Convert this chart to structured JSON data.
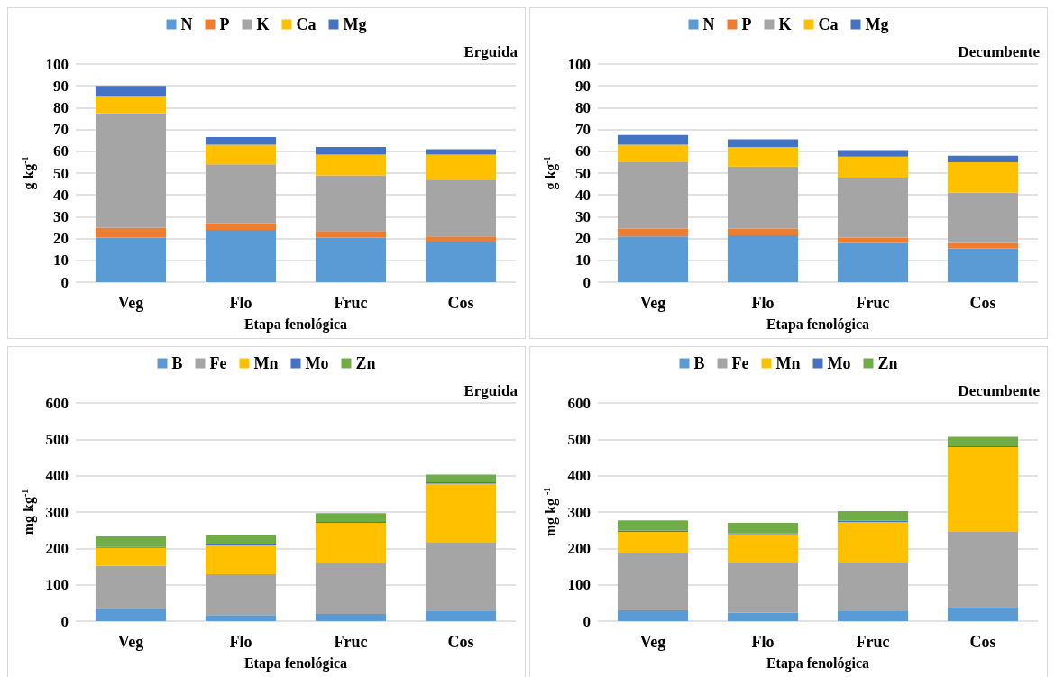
{
  "chart_data": [
    {
      "type": "bar",
      "stacked": true,
      "xlabel": "Etapa fenológica",
      "ylabel": "g kg$^{-1}$",
      "annotations": [
        "Erguida"
      ],
      "categories": [
        "Veg",
        "Flo",
        "Fruc",
        "Cos"
      ],
      "ylim": [
        0,
        100
      ],
      "yticks": [
        0,
        10,
        20,
        30,
        40,
        50,
        60,
        70,
        80,
        90,
        100
      ],
      "grid": "y",
      "legend": "top",
      "series": [
        {
          "name": "N",
          "color": "#5b9bd5",
          "values": [
            20.5,
            24,
            20.5,
            18.5
          ]
        },
        {
          "name": "P",
          "color": "#ed7d31",
          "values": [
            4.5,
            3,
            3,
            2.5
          ]
        },
        {
          "name": "K",
          "color": "#a5a5a5",
          "values": [
            52.5,
            27,
            25.5,
            26
          ]
        },
        {
          "name": "Ca",
          "color": "#ffc000",
          "values": [
            7.5,
            9,
            9.5,
            11.5
          ]
        },
        {
          "name": "Mg",
          "color": "#4472c4",
          "values": [
            5,
            3.5,
            3.5,
            2.5
          ]
        }
      ]
    },
    {
      "type": "bar",
      "stacked": true,
      "xlabel": "Etapa fenológica",
      "ylabel": "g kg$^{-1}$",
      "annotations": [
        "Decumbente"
      ],
      "categories": [
        "Veg",
        "Flo",
        "Fruc",
        "Cos"
      ],
      "ylim": [
        0,
        100
      ],
      "yticks": [
        0,
        10,
        20,
        30,
        40,
        50,
        60,
        70,
        80,
        90,
        100
      ],
      "grid": "y",
      "legend": "top",
      "series": [
        {
          "name": "N",
          "color": "#5b9bd5",
          "values": [
            21,
            21.5,
            18,
            15.5
          ]
        },
        {
          "name": "P",
          "color": "#ed7d31",
          "values": [
            3.5,
            3,
            2.5,
            2.5
          ]
        },
        {
          "name": "K",
          "color": "#a5a5a5",
          "values": [
            30.5,
            28.5,
            27,
            23
          ]
        },
        {
          "name": "Ca",
          "color": "#ffc000",
          "values": [
            8,
            9,
            10,
            14
          ]
        },
        {
          "name": "Mg",
          "color": "#4472c4",
          "values": [
            4.5,
            3.5,
            3,
            3
          ]
        }
      ]
    },
    {
      "type": "bar",
      "stacked": true,
      "xlabel": "Etapa fenológica",
      "ylabel": "mg kg$^{-1}$",
      "annotations": [
        "Erguida"
      ],
      "categories": [
        "Veg",
        "Flo",
        "Fruc",
        "Cos"
      ],
      "ylim": [
        0,
        600
      ],
      "yticks": [
        0,
        100,
        200,
        300,
        400,
        500,
        600
      ],
      "grid": "y",
      "legend": "top",
      "series": [
        {
          "name": "B",
          "color": "#5b9bd5",
          "values": [
            32,
            17,
            20,
            29
          ]
        },
        {
          "name": "Fe",
          "color": "#a5a5a5",
          "values": [
            120,
            112,
            140,
            188.5
          ]
        },
        {
          "name": "Mn",
          "color": "#ffc000",
          "values": [
            49.5,
            79,
            110,
            160.5
          ]
        },
        {
          "name": "Mo",
          "color": "#4472c4",
          "values": [
            2.5,
            3,
            3,
            4
          ]
        },
        {
          "name": "Zn",
          "color": "#70ad47",
          "values": [
            29,
            26,
            24,
            21
          ]
        }
      ]
    },
    {
      "type": "bar",
      "stacked": true,
      "xlabel": "Etapa fenológica",
      "ylabel": "mg kg $^{-1}$",
      "annotations": [
        "Decumbente"
      ],
      "categories": [
        "Veg",
        "Flo",
        "Fruc",
        "Cos"
      ],
      "ylim": [
        0,
        600
      ],
      "yticks": [
        0,
        100,
        200,
        300,
        400,
        500,
        600
      ],
      "grid": "y",
      "legend": "top",
      "series": [
        {
          "name": "B",
          "color": "#5b9bd5",
          "values": [
            30,
            23,
            27,
            37.5
          ]
        },
        {
          "name": "Fe",
          "color": "#a5a5a5",
          "values": [
            158,
            140,
            136,
            208
          ]
        },
        {
          "name": "Mn",
          "color": "#ffc000",
          "values": [
            57.5,
            76,
            110,
            233
          ]
        },
        {
          "name": "Mo",
          "color": "#4472c4",
          "values": [
            3.5,
            3,
            3,
            2.5
          ]
        },
        {
          "name": "Zn",
          "color": "#70ad47",
          "values": [
            28,
            28.5,
            26.5,
            26
          ]
        }
      ]
    }
  ]
}
